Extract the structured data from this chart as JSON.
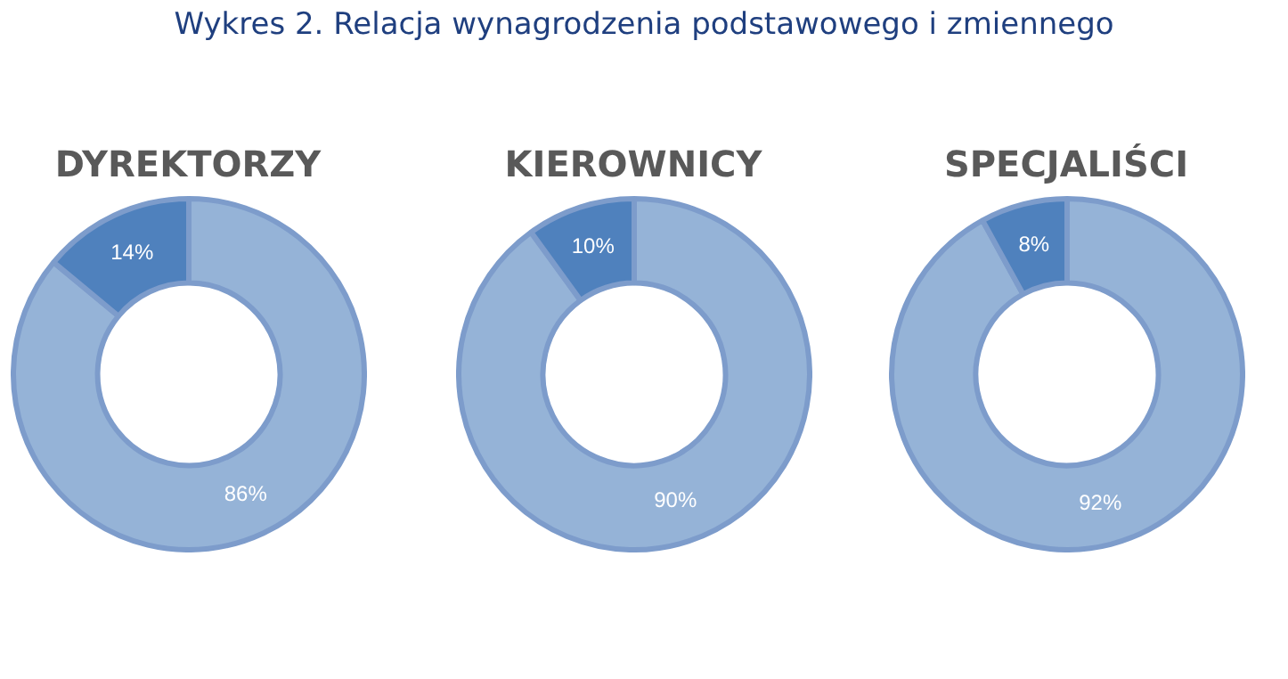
{
  "chart_data": [
    {
      "type": "other",
      "title": "Wykres 2. Relacja wynagrodzenia podstawowego i zmiennego"
    },
    {
      "type": "donut",
      "title": "DYREKTORZY",
      "categories": [
        null,
        null
      ],
      "values": [
        86,
        14
      ],
      "colors": [
        "#95b3d7",
        "#4f81bd"
      ],
      "value_labels": [
        "86%",
        "14%"
      ]
    },
    {
      "type": "donut",
      "title": "KIEROWNICY",
      "categories": [
        null,
        null
      ],
      "values": [
        90,
        10
      ],
      "colors": [
        "#95b3d7",
        "#4f81bd"
      ],
      "value_labels": [
        "90%",
        "10%"
      ]
    },
    {
      "type": "donut",
      "title": "SPECJALIŚCI",
      "categories": [
        null,
        null
      ],
      "values": [
        92,
        8
      ],
      "colors": [
        "#95b3d7",
        "#4f81bd"
      ],
      "value_labels": [
        "92%",
        "8%"
      ]
    }
  ]
}
